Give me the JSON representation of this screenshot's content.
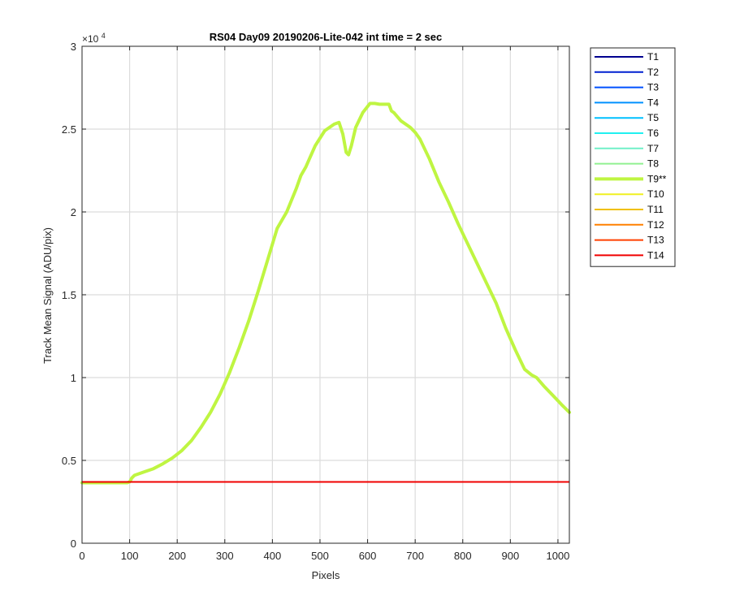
{
  "chart_data": {
    "type": "line",
    "title": "RS04 Day09 20190206-Lite-042 int time = 2 sec",
    "xlabel": "Pixels",
    "ylabel": "Track Mean Signal (ADU/pix)",
    "y_multiplier_label": "×10",
    "y_multiplier_exponent": "4",
    "xlim": [
      0,
      1024
    ],
    "ylim": [
      0,
      30000
    ],
    "xticks": [
      0,
      100,
      200,
      300,
      400,
      500,
      600,
      700,
      800,
      900,
      1000
    ],
    "xtick_labels": [
      "0",
      "100",
      "200",
      "300",
      "400",
      "500",
      "600",
      "700",
      "800",
      "900",
      "1000"
    ],
    "yticks": [
      0,
      5000,
      10000,
      15000,
      20000,
      25000,
      30000
    ],
    "ytick_labels": [
      "0",
      "0.5",
      "1",
      "1.5",
      "2",
      "2.5",
      "3"
    ],
    "grid": true,
    "legend_position": "outside-right",
    "baseline_value": 3700,
    "series": [
      {
        "name": "T1",
        "color": "#00008f",
        "bold": false
      },
      {
        "name": "T2",
        "color": "#0020d0",
        "bold": false
      },
      {
        "name": "T3",
        "color": "#0050ff",
        "bold": false
      },
      {
        "name": "T4",
        "color": "#0090ff",
        "bold": false
      },
      {
        "name": "T5",
        "color": "#00c0ff",
        "bold": false
      },
      {
        "name": "T6",
        "color": "#20f0f0",
        "bold": false
      },
      {
        "name": "T7",
        "color": "#70f0c8",
        "bold": false
      },
      {
        "name": "T8",
        "color": "#90f090",
        "bold": false
      },
      {
        "name": "T9**",
        "color": "#bff542",
        "bold": true,
        "x": [
          0,
          95,
          100,
          105,
          110,
          130,
          150,
          170,
          190,
          210,
          230,
          250,
          270,
          290,
          310,
          330,
          350,
          370,
          390,
          410,
          430,
          450,
          460,
          470,
          490,
          510,
          530,
          540,
          548,
          555,
          560,
          566,
          575,
          590,
          605,
          615,
          625,
          645,
          650,
          655,
          670,
          690,
          700,
          710,
          730,
          750,
          770,
          790,
          810,
          830,
          850,
          870,
          890,
          910,
          930,
          945,
          955,
          970,
          990,
          1010,
          1024
        ],
        "y": [
          3650,
          3650,
          3700,
          3950,
          4100,
          4300,
          4500,
          4800,
          5150,
          5600,
          6200,
          7000,
          7900,
          9000,
          10300,
          11800,
          13400,
          15200,
          17100,
          19000,
          20000,
          21400,
          22200,
          22700,
          24000,
          24900,
          25300,
          25400,
          24700,
          23600,
          23450,
          24000,
          25100,
          26000,
          26550,
          26550,
          26500,
          26500,
          26100,
          26000,
          25500,
          25100,
          24800,
          24400,
          23200,
          21800,
          20600,
          19300,
          18100,
          16900,
          15700,
          14500,
          13000,
          11700,
          10500,
          10150,
          10000,
          9500,
          8900,
          8300,
          7900
        ]
      },
      {
        "name": "T10",
        "color": "#f0f020",
        "bold": false
      },
      {
        "name": "T11",
        "color": "#f0c000",
        "bold": false
      },
      {
        "name": "T12",
        "color": "#ff8000",
        "bold": false
      },
      {
        "name": "T13",
        "color": "#ff4000",
        "bold": false
      },
      {
        "name": "T14",
        "color": "#f00000",
        "bold": false
      }
    ]
  }
}
